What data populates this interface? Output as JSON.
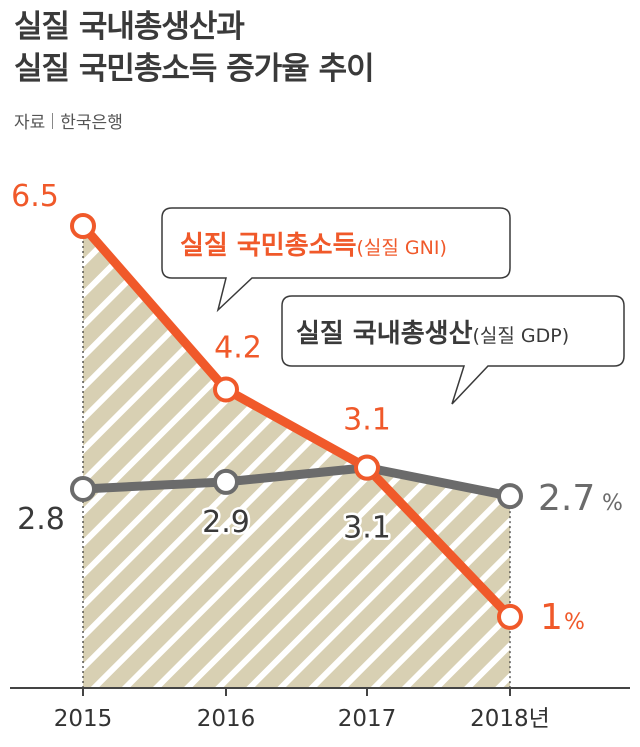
{
  "title_line1": "실질 국내총생산과",
  "title_line2": "실질 국민총소득 증가율 추이",
  "source_label": "자료",
  "source_name": "한국은행",
  "colors": {
    "gni": "#f0592a",
    "gdp": "#6b6b6b",
    "fill": "#d8d0b3",
    "axis": "#444444",
    "text_dark": "#3a3a3a"
  },
  "chart_data": {
    "type": "line",
    "x": [
      "2015",
      "2016",
      "2017",
      "2018년"
    ],
    "ylim": [
      0,
      7
    ],
    "grid": false,
    "series": [
      {
        "name": "실질 국민총소득",
        "name_suffix": "(실질 GNI)",
        "values": [
          6.5,
          4.2,
          3.1,
          1
        ],
        "labels": [
          "6.5",
          "4.2",
          "3.1",
          "1"
        ],
        "unit_last": "%"
      },
      {
        "name": "실질 국내총생산",
        "name_suffix": "(실질 GDP)",
        "values": [
          2.8,
          2.9,
          3.1,
          2.7
        ],
        "labels": [
          "2.8",
          "2.9",
          "3.1",
          "2.7"
        ],
        "unit_last": "%"
      }
    ]
  }
}
